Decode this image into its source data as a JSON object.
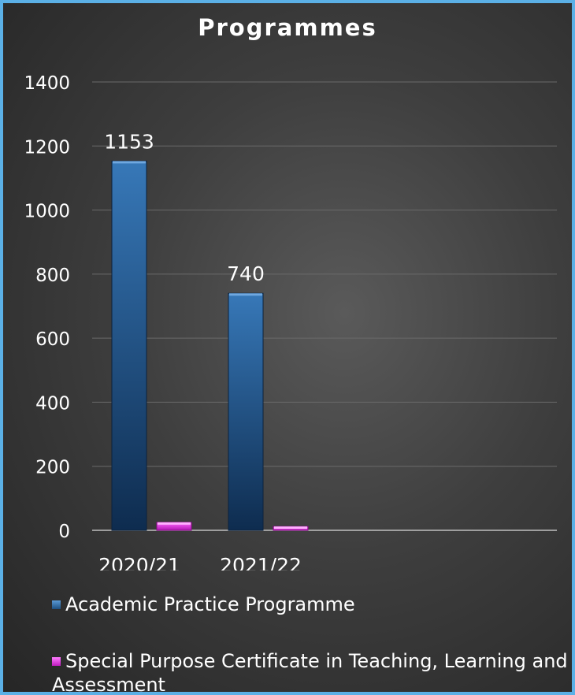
{
  "chart_data": {
    "type": "bar",
    "title": "Programmes",
    "categories": [
      "2020/21",
      "2021/22"
    ],
    "series": [
      {
        "name": "Academic Practice Programme",
        "values": [
          1153,
          740
        ],
        "color": "#1e4f80"
      },
      {
        "name": "Special Purpose Certificate in Teaching, Learning and Assessment",
        "values": [
          25,
          12
        ],
        "color": "#d62ad6"
      }
    ],
    "data_labels": [
      "1153",
      "740"
    ],
    "y_ticks": [
      "0",
      "200",
      "400",
      "600",
      "800",
      "1000",
      "1200",
      "1400"
    ],
    "ylim": [
      0,
      1400
    ],
    "grid": true,
    "legend_position": "bottom"
  }
}
